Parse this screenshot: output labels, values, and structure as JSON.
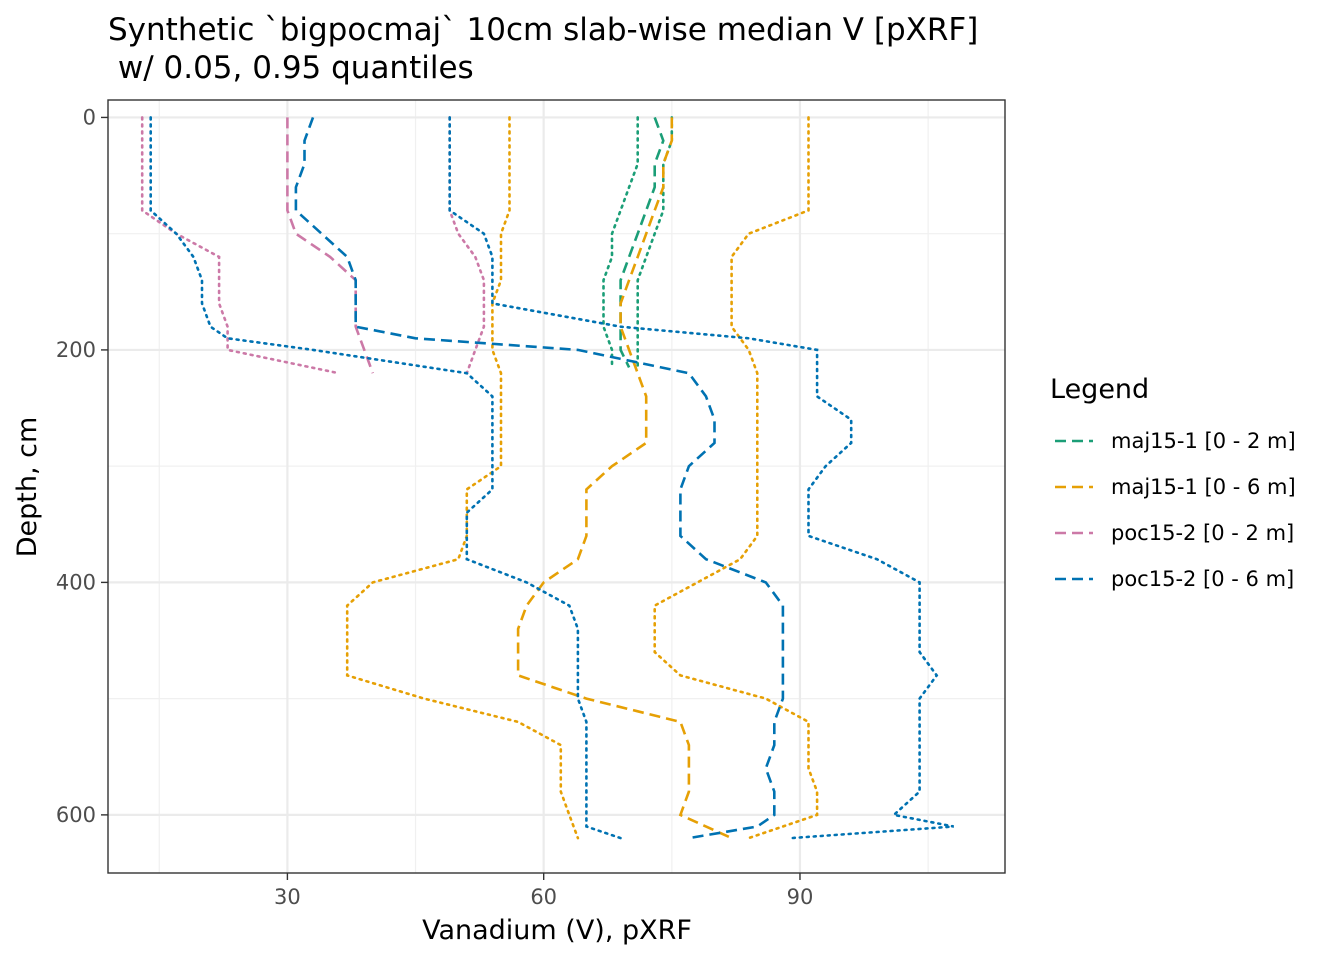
{
  "chart_data": {
    "type": "line",
    "title_line1": "Synthetic `bigpocmaj` 10cm slab-wise median V [pXRF]",
    "title_line2": " w/ 0.05, 0.95 quantiles",
    "xlabel": "Vanadium (V), pXRF",
    "ylabel": "Depth, cm",
    "xlim": [
      9,
      114
    ],
    "ylim": [
      650,
      -15
    ],
    "y_reversed": true,
    "x_ticks": [
      30,
      60,
      90
    ],
    "y_ticks": [
      0,
      200,
      400,
      600
    ],
    "grid": true,
    "legend": {
      "title": "Legend",
      "position": "right"
    },
    "series": [
      {
        "name": "maj15-1 [0 - 2 m]",
        "color": "#1B9E77",
        "depth": [
          0,
          20,
          40,
          60,
          80,
          100,
          120,
          140,
          160,
          180,
          200,
          215
        ],
        "median": [
          73,
          74,
          73,
          73,
          72,
          71,
          70,
          69,
          69,
          69,
          69,
          70
        ],
        "q05": [
          71,
          71,
          71,
          70,
          69,
          68,
          68,
          67,
          67,
          67,
          68,
          68
        ],
        "q95": [
          75,
          75,
          74,
          74,
          74,
          73,
          72,
          71,
          71,
          71,
          71,
          71
        ]
      },
      {
        "name": "maj15-1 [0 - 6 m]",
        "color": "#E6A005",
        "depth": [
          0,
          20,
          40,
          60,
          80,
          100,
          120,
          140,
          160,
          180,
          200,
          220,
          240,
          260,
          280,
          300,
          320,
          340,
          360,
          380,
          400,
          420,
          440,
          460,
          480,
          500,
          520,
          540,
          560,
          580,
          600,
          620
        ],
        "median": [
          75,
          75,
          74,
          74,
          73,
          72,
          71,
          70,
          69,
          69,
          70,
          71,
          72,
          72,
          72,
          68,
          65,
          65,
          65,
          64,
          60,
          58,
          57,
          57,
          57,
          65,
          76,
          77,
          77,
          77,
          76,
          82
        ],
        "q05": [
          56,
          56,
          56,
          56,
          56,
          55,
          55,
          55,
          54,
          54,
          54,
          55,
          55,
          55,
          55,
          55,
          51,
          51,
          51,
          50,
          40,
          37,
          37,
          37,
          37,
          46,
          57,
          62,
          62,
          62,
          63,
          64
        ],
        "q95": [
          91,
          91,
          91,
          91,
          91,
          84,
          82,
          82,
          82,
          82,
          84,
          85,
          85,
          85,
          85,
          85,
          85,
          85,
          85,
          83,
          78,
          73,
          73,
          73,
          76,
          86,
          91,
          91,
          91,
          92,
          92,
          84
        ]
      },
      {
        "name": "poc15-2 [0 - 2 m]",
        "color": "#CC79A7",
        "depth": [
          0,
          20,
          40,
          60,
          80,
          100,
          120,
          140,
          160,
          180,
          200,
          220
        ],
        "median": [
          30,
          30,
          30,
          30,
          30,
          31,
          35,
          38,
          38,
          38,
          39,
          40
        ],
        "q05": [
          13,
          13,
          13,
          13,
          13,
          17,
          22,
          22,
          22,
          23,
          23,
          36
        ],
        "q95": [
          49,
          49,
          49,
          49,
          49,
          50,
          52,
          53,
          53,
          53,
          52,
          51
        ]
      },
      {
        "name": "poc15-2 [0 - 6 m]",
        "color": "#0072B2",
        "depth": [
          0,
          20,
          40,
          60,
          80,
          100,
          120,
          140,
          160,
          180,
          190,
          200,
          220,
          240,
          260,
          280,
          300,
          320,
          340,
          360,
          380,
          400,
          420,
          440,
          460,
          480,
          500,
          520,
          540,
          560,
          580,
          600,
          610,
          620
        ],
        "median": [
          33,
          32,
          32,
          31,
          31,
          34,
          37,
          38,
          38,
          38,
          45,
          64,
          77,
          79,
          80,
          80,
          77,
          76,
          76,
          76,
          79,
          86,
          88,
          88,
          88,
          88,
          88,
          87,
          87,
          86,
          87,
          87,
          85,
          77
        ],
        "q05": [
          14,
          14,
          14,
          14,
          14,
          17,
          19,
          20,
          20,
          21,
          23,
          33,
          51,
          54,
          54,
          54,
          54,
          54,
          51,
          51,
          51,
          58,
          63,
          64,
          64,
          64,
          64,
          65,
          65,
          65,
          65,
          65,
          65,
          69
        ],
        "q95": [
          49,
          49,
          49,
          49,
          49,
          53,
          54,
          54,
          54,
          69,
          84,
          92,
          92,
          92,
          96,
          96,
          93,
          91,
          91,
          91,
          99,
          104,
          104,
          104,
          104,
          106,
          104,
          104,
          104,
          104,
          104,
          101,
          108,
          89
        ]
      }
    ]
  }
}
